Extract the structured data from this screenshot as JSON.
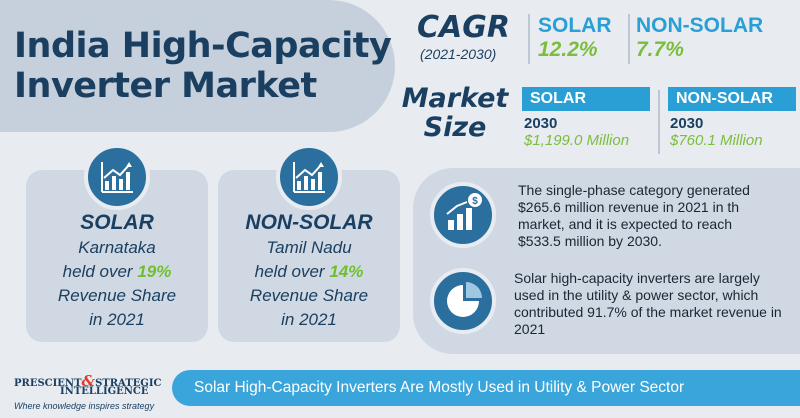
{
  "title": {
    "line1": "India High-Capacity",
    "line2": "Inverter Market"
  },
  "cagr": {
    "label": "CAGR",
    "period": "(2021-2030)",
    "solar": {
      "label": "SOLAR",
      "value": "12.2%"
    },
    "non_solar": {
      "label": "NON-SOLAR",
      "value": "7.7%"
    }
  },
  "market_size": {
    "label_line1": "Market",
    "label_line2": "Size",
    "solar": {
      "label": "SOLAR",
      "year": "2030",
      "value": "$1,199.0 Million"
    },
    "non_solar": {
      "label": "NON-SOLAR",
      "year": "2030",
      "value": "$760.1 Million"
    }
  },
  "cards": [
    {
      "title": "SOLAR",
      "line1": "Karnataka",
      "line2_prefix": "held over ",
      "share": "19%",
      "line3": "Revenue Share",
      "line4": "in 2021",
      "icon": "growth-chart-icon"
    },
    {
      "title": "NON-SOLAR",
      "line1": "Tamil Nadu",
      "line2_prefix": "held over ",
      "share": "14%",
      "line3": "Revenue Share",
      "line4": "in 2021",
      "icon": "growth-chart-icon"
    }
  ],
  "info": [
    {
      "icon": "revenue-growth-icon",
      "text": "The single-phase category generated $265.6 million revenue in 2021 in th market, and it is expected to reach $533.5 million by 2030."
    },
    {
      "icon": "pie-chart-icon",
      "text": "Solar high-capacity inverters are largely used in the utility & power sector, which contributed 91.7% of the market revenue in 2021"
    }
  ],
  "logo": {
    "line1_a": "PRESCIENT",
    "amp": "&",
    "line1_b": "STRATEGIC",
    "line2": "INTELLIGENCE",
    "tagline": "Where knowledge inspires strategy"
  },
  "banner": "Solar High-Capacity Inverters Are Mostly Used in Utility & Power Sector",
  "colors": {
    "navy": "#1a3f61",
    "blue": "#2a9fd6",
    "green": "#7bbd3d",
    "panel": "#d0d9e3",
    "background": "#e8ecf1"
  }
}
